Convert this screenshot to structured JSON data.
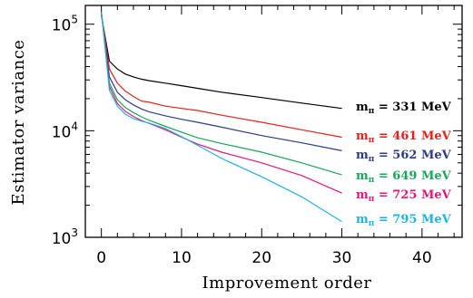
{
  "chart_data": {
    "type": "line",
    "title": "",
    "xlabel": "Improvement order",
    "ylabel": "Estimator variance",
    "xlim": [
      -2,
      45
    ],
    "ylim": [
      1000,
      150000
    ],
    "y_scale": "log",
    "grid": false,
    "legend": "inline labels at right end of each line",
    "x_ticks": [
      {
        "value": 0,
        "label": "0"
      },
      {
        "value": 10,
        "label": "10"
      },
      {
        "value": 20,
        "label": "20"
      },
      {
        "value": 30,
        "label": "30"
      },
      {
        "value": 40,
        "label": "40"
      }
    ],
    "y_ticks": [
      {
        "value": 1000,
        "base": "10",
        "exp": "3"
      },
      {
        "value": 10000,
        "base": "10",
        "exp": "4"
      },
      {
        "value": 100000,
        "base": "10",
        "exp": "5"
      }
    ],
    "series": [
      {
        "name": "m_π = 331 MeV",
        "label_main": "m",
        "label_sub": "π",
        "label_rest": " = 331 MeV",
        "color": "#000000",
        "x": [
          0,
          1,
          2,
          3,
          4,
          5,
          6,
          8,
          10,
          12,
          15,
          20,
          25,
          30
        ],
        "y": [
          120000,
          45000,
          38000,
          34000,
          32000,
          30500,
          29500,
          28000,
          26500,
          25000,
          23000,
          20500,
          18200,
          16200
        ]
      },
      {
        "name": "m_π = 461 MeV",
        "label_main": "m",
        "label_sub": "π",
        "label_rest": " = 461 MeV",
        "color": "#e8201c",
        "x": [
          0,
          1,
          2,
          3,
          4,
          5,
          6,
          8,
          10,
          12,
          15,
          20,
          25,
          30
        ],
        "y": [
          125000,
          38000,
          28000,
          23500,
          21000,
          19000,
          18500,
          17000,
          16200,
          15500,
          14000,
          12000,
          10200,
          8700
        ]
      },
      {
        "name": "m_π = 562 MeV",
        "label_main": "m",
        "label_sub": "π",
        "label_rest": " = 562 MeV",
        "color": "#2b3a8c",
        "x": [
          0,
          1,
          2,
          3,
          4,
          5,
          6,
          8,
          10,
          12,
          15,
          20,
          25,
          30
        ],
        "y": [
          125000,
          32000,
          23000,
          19500,
          17500,
          16000,
          15000,
          13800,
          12800,
          12000,
          10800,
          9000,
          7700,
          6500
        ]
      },
      {
        "name": "m_π = 649 MeV",
        "label_main": "m",
        "label_sub": "π",
        "label_rest": " = 649 MeV",
        "color": "#1aa55a",
        "x": [
          0,
          1,
          2,
          3,
          4,
          5,
          6,
          8,
          10,
          12,
          15,
          20,
          25,
          30
        ],
        "y": [
          128000,
          28000,
          19500,
          16500,
          14800,
          13500,
          12500,
          11000,
          9700,
          8600,
          7600,
          6300,
          5000,
          3850
        ]
      },
      {
        "name": "m_π = 725 MeV",
        "label_main": "m",
        "label_sub": "π",
        "label_rest": " = 725 MeV",
        "color": "#e0197a",
        "x": [
          0,
          1,
          2,
          3,
          4,
          5,
          6,
          8,
          10,
          12,
          15,
          20,
          25,
          30
        ],
        "y": [
          130000,
          26000,
          18000,
          15200,
          13600,
          12500,
          11700,
          10200,
          8700,
          7500,
          6300,
          5000,
          3800,
          2600
        ]
      },
      {
        "name": "m_π = 795 MeV",
        "label_main": "m",
        "label_sub": "π",
        "label_rest": " = 795 MeV",
        "color": "#1fb3e0",
        "x": [
          0,
          1,
          2,
          3,
          4,
          5,
          6,
          8,
          10,
          12,
          15,
          20,
          25,
          30
        ],
        "y": [
          130000,
          24000,
          17000,
          14300,
          13000,
          12300,
          11800,
          10500,
          8800,
          7300,
          5500,
          3700,
          2400,
          1400
        ]
      }
    ]
  }
}
